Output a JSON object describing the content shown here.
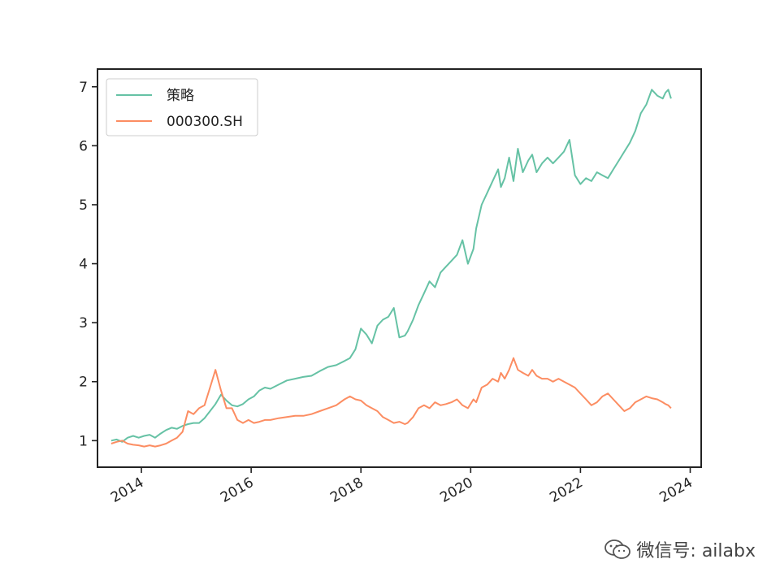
{
  "chart_data": {
    "type": "line",
    "title": "",
    "xlabel": "",
    "ylabel": "",
    "xlim": [
      2013.2,
      2024.2
    ],
    "ylim": [
      0.55,
      7.3
    ],
    "grid": false,
    "legend_position": "top-left",
    "xticks": [
      "2014",
      "2016",
      "2018",
      "2020",
      "2022",
      "2024"
    ],
    "yticks": [
      "1",
      "2",
      "3",
      "4",
      "5",
      "6",
      "7"
    ],
    "series": [
      {
        "name": "策略",
        "color": "#66c2a5",
        "x": [
          2013.45,
          2013.55,
          2013.65,
          2013.75,
          2013.85,
          2013.95,
          2014.05,
          2014.15,
          2014.25,
          2014.35,
          2014.45,
          2014.55,
          2014.65,
          2014.75,
          2014.85,
          2014.95,
          2015.05,
          2015.15,
          2015.25,
          2015.35,
          2015.45,
          2015.55,
          2015.65,
          2015.75,
          2015.85,
          2015.95,
          2016.05,
          2016.15,
          2016.25,
          2016.35,
          2016.5,
          2016.65,
          2016.8,
          2016.95,
          2017.1,
          2017.25,
          2017.4,
          2017.55,
          2017.7,
          2017.8,
          2017.9,
          2018.0,
          2018.1,
          2018.2,
          2018.3,
          2018.4,
          2018.5,
          2018.6,
          2018.7,
          2018.8,
          2018.85,
          2018.95,
          2019.05,
          2019.15,
          2019.25,
          2019.35,
          2019.45,
          2019.55,
          2019.65,
          2019.75,
          2019.85,
          2019.95,
          2020.05,
          2020.1,
          2020.2,
          2020.3,
          2020.4,
          2020.5,
          2020.55,
          2020.62,
          2020.7,
          2020.78,
          2020.86,
          2020.95,
          2021.05,
          2021.12,
          2021.2,
          2021.3,
          2021.4,
          2021.5,
          2021.6,
          2021.7,
          2021.8,
          2021.9,
          2022.0,
          2022.1,
          2022.2,
          2022.3,
          2022.4,
          2022.5,
          2022.6,
          2022.7,
          2022.8,
          2022.9,
          2023.0,
          2023.1,
          2023.2,
          2023.3,
          2023.4,
          2023.5,
          2023.55,
          2023.6,
          2023.65
        ],
        "values": [
          1.0,
          1.02,
          0.98,
          1.05,
          1.08,
          1.05,
          1.08,
          1.1,
          1.05,
          1.12,
          1.18,
          1.22,
          1.2,
          1.25,
          1.28,
          1.3,
          1.3,
          1.38,
          1.5,
          1.62,
          1.78,
          1.68,
          1.6,
          1.58,
          1.62,
          1.7,
          1.75,
          1.85,
          1.9,
          1.88,
          1.95,
          2.02,
          2.05,
          2.08,
          2.1,
          2.18,
          2.25,
          2.28,
          2.35,
          2.4,
          2.55,
          2.9,
          2.8,
          2.65,
          2.95,
          3.05,
          3.1,
          3.25,
          2.75,
          2.78,
          2.85,
          3.05,
          3.3,
          3.5,
          3.7,
          3.6,
          3.85,
          3.95,
          4.05,
          4.15,
          4.4,
          4.0,
          4.25,
          4.6,
          5.0,
          5.2,
          5.4,
          5.6,
          5.3,
          5.45,
          5.8,
          5.4,
          5.95,
          5.55,
          5.75,
          5.85,
          5.55,
          5.7,
          5.8,
          5.7,
          5.8,
          5.9,
          6.1,
          5.5,
          5.35,
          5.45,
          5.4,
          5.55,
          5.5,
          5.45,
          5.6,
          5.75,
          5.9,
          6.05,
          6.25,
          6.55,
          6.7,
          6.95,
          6.85,
          6.8,
          6.9,
          6.95,
          6.8
        ]
      },
      {
        "name": "000300.SH",
        "color": "#fc8d62",
        "x": [
          2013.45,
          2013.55,
          2013.65,
          2013.75,
          2013.85,
          2013.95,
          2014.05,
          2014.15,
          2014.25,
          2014.35,
          2014.45,
          2014.55,
          2014.65,
          2014.75,
          2014.85,
          2014.95,
          2015.05,
          2015.15,
          2015.25,
          2015.35,
          2015.45,
          2015.55,
          2015.65,
          2015.75,
          2015.85,
          2015.95,
          2016.05,
          2016.15,
          2016.25,
          2016.35,
          2016.5,
          2016.65,
          2016.8,
          2016.95,
          2017.1,
          2017.25,
          2017.4,
          2017.55,
          2017.7,
          2017.8,
          2017.9,
          2018.0,
          2018.1,
          2018.2,
          2018.3,
          2018.4,
          2018.5,
          2018.6,
          2018.7,
          2018.8,
          2018.85,
          2018.95,
          2019.05,
          2019.15,
          2019.25,
          2019.35,
          2019.45,
          2019.55,
          2019.65,
          2019.75,
          2019.85,
          2019.95,
          2020.05,
          2020.1,
          2020.2,
          2020.3,
          2020.4,
          2020.5,
          2020.55,
          2020.62,
          2020.7,
          2020.78,
          2020.86,
          2020.95,
          2021.05,
          2021.12,
          2021.2,
          2021.3,
          2021.4,
          2021.5,
          2021.6,
          2021.7,
          2021.8,
          2021.9,
          2022.0,
          2022.1,
          2022.2,
          2022.3,
          2022.4,
          2022.5,
          2022.6,
          2022.7,
          2022.8,
          2022.9,
          2023.0,
          2023.1,
          2023.2,
          2023.3,
          2023.4,
          2023.5,
          2023.55,
          2023.6,
          2023.65
        ],
        "values": [
          0.95,
          0.98,
          1.0,
          0.95,
          0.93,
          0.92,
          0.9,
          0.92,
          0.9,
          0.92,
          0.95,
          1.0,
          1.05,
          1.15,
          1.5,
          1.45,
          1.55,
          1.6,
          1.9,
          2.2,
          1.85,
          1.55,
          1.55,
          1.35,
          1.3,
          1.35,
          1.3,
          1.32,
          1.35,
          1.35,
          1.38,
          1.4,
          1.42,
          1.42,
          1.45,
          1.5,
          1.55,
          1.6,
          1.7,
          1.75,
          1.7,
          1.68,
          1.6,
          1.55,
          1.5,
          1.4,
          1.35,
          1.3,
          1.32,
          1.28,
          1.3,
          1.4,
          1.55,
          1.6,
          1.55,
          1.65,
          1.6,
          1.62,
          1.65,
          1.7,
          1.6,
          1.55,
          1.7,
          1.65,
          1.9,
          1.95,
          2.05,
          2.0,
          2.15,
          2.05,
          2.2,
          2.4,
          2.2,
          2.15,
          2.1,
          2.2,
          2.1,
          2.05,
          2.05,
          2.0,
          2.05,
          2.0,
          1.95,
          1.9,
          1.8,
          1.7,
          1.6,
          1.65,
          1.75,
          1.8,
          1.7,
          1.6,
          1.5,
          1.55,
          1.65,
          1.7,
          1.75,
          1.72,
          1.7,
          1.65,
          1.62,
          1.6,
          1.55
        ]
      }
    ]
  },
  "watermark": {
    "text": "微信号: ailabx",
    "icon": "wechat-icon"
  }
}
